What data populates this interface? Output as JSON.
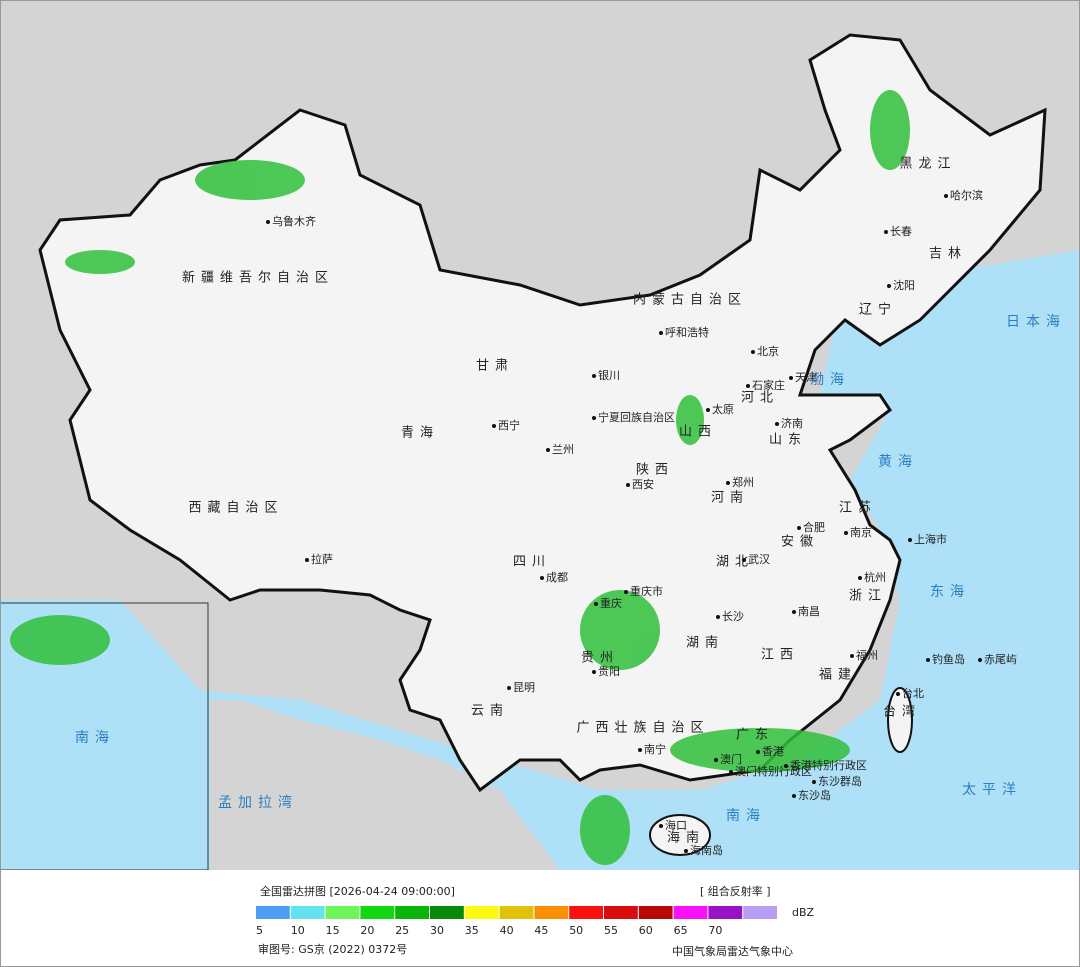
{
  "header": {
    "title": "全国雷达拼图 [2026-04-24 09:00:00]",
    "product": "[ 组合反射率 ]"
  },
  "legend": {
    "unit": "dBZ",
    "scale": [
      {
        "value": 5,
        "color": "#4e9ef5"
      },
      {
        "value": 10,
        "color": "#62e3ee"
      },
      {
        "value": 15,
        "color": "#6ff55a"
      },
      {
        "value": 20,
        "color": "#12d812"
      },
      {
        "value": 25,
        "color": "#0ab50a"
      },
      {
        "value": 30,
        "color": "#078a07"
      },
      {
        "value": 35,
        "color": "#fbfb12"
      },
      {
        "value": 40,
        "color": "#e0c20a"
      },
      {
        "value": 45,
        "color": "#fb9006"
      },
      {
        "value": 50,
        "color": "#fb1010"
      },
      {
        "value": 55,
        "color": "#d80c0c"
      },
      {
        "value": 60,
        "color": "#b80808"
      },
      {
        "value": 65,
        "color": "#fb10fb"
      },
      {
        "value": 70,
        "color": "#9a12c8"
      },
      {
        "value": null,
        "color": "#b89df5"
      }
    ]
  },
  "footer": {
    "approval": "审图号: GS京 (2022) 0372号",
    "agency": "中国气象局雷达气象中心"
  },
  "map_labels": [
    "乌鲁木齐",
    "新疆维吾尔自治区",
    "西藏自治区",
    "拉萨",
    "青海",
    "西宁",
    "甘肃",
    "内蒙古自治区",
    "呼和浩特",
    "银川",
    "宁夏回族自治区",
    "兰州",
    "黑龙江",
    "哈尔滨",
    "长春",
    "吉林",
    "沈阳",
    "辽宁",
    "北京",
    "天津",
    "石家庄",
    "河北",
    "太原",
    "山西",
    "济南",
    "山东",
    "西安",
    "陕西",
    "郑州",
    "河南",
    "江苏",
    "合肥",
    "安徽",
    "南京",
    "上海市",
    "四川",
    "成都",
    "重庆市",
    "重庆",
    "湖北",
    "武汉",
    "杭州",
    "浙江",
    "长沙",
    "湖南",
    "南昌",
    "江西",
    "贵阳",
    "贵州",
    "福州",
    "福建",
    "钓鱼岛",
    "赤尾屿",
    "台北",
    "台湾",
    "昆明",
    "云南",
    "广西壮族自治区",
    "南宁",
    "广东",
    "澳门",
    "香港",
    "澳门特别行政区",
    "香港特别行政区",
    "东沙群岛",
    "东沙岛",
    "海口",
    "海南",
    "海南岛",
    "渤海",
    "黄海",
    "东海",
    "日本海",
    "太平洋",
    "南海",
    "孟加拉湾",
    "南海"
  ]
}
